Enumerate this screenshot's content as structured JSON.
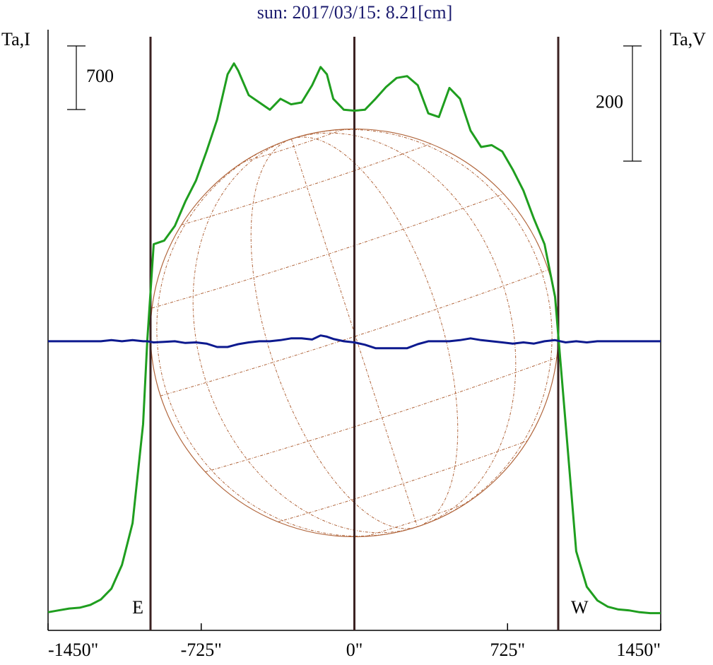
{
  "chart_data": {
    "type": "line",
    "title": "sun: 2017/03/15: 8.21[cm]",
    "y_label": "Ta,I",
    "y2_label": "Ta,V",
    "x": [
      -1450,
      -1400,
      -1350,
      -1300,
      -1250,
      -1200,
      -1150,
      -1100,
      -1050,
      -1000,
      -980,
      -950,
      -900,
      -850,
      -800,
      -750,
      -700,
      -650,
      -600,
      -570,
      -550,
      -500,
      -450,
      -400,
      -350,
      -300,
      -250,
      -200,
      -160,
      -130,
      -100,
      -50,
      0,
      50,
      100,
      150,
      200,
      250,
      300,
      350,
      400,
      450,
      500,
      550,
      600,
      650,
      700,
      750,
      800,
      850,
      900,
      950,
      1000,
      1050,
      1100,
      1150,
      1200,
      1250,
      1300,
      1350,
      1400,
      1450
    ],
    "xlim": [
      -1450,
      1450
    ],
    "xticks": [
      {
        "value": -1450,
        "label": "-1450\""
      },
      {
        "value": -725,
        "label": "-725\""
      },
      {
        "value": 0,
        "label": "0\""
      },
      {
        "value": 725,
        "label": "725\""
      },
      {
        "value": 1450,
        "label": "1450\""
      }
    ],
    "ylim": [
      0,
      6611
    ],
    "y2lim": [
      -502,
      541
    ],
    "series": [
      {
        "color": "#1f9e1f",
        "values": [
          200,
          220,
          240,
          250,
          280,
          340,
          460,
          720,
          1180,
          2270,
          3200,
          4250,
          4290,
          4450,
          4720,
          4950,
          5270,
          5620,
          6120,
          6240,
          6160,
          5890,
          5810,
          5730,
          5850,
          5790,
          5810,
          6000,
          6200,
          6120,
          5850,
          5730,
          5720,
          5730,
          5850,
          5980,
          6080,
          6100,
          6000,
          5690,
          5650,
          5970,
          5850,
          5500,
          5320,
          5340,
          5270,
          5070,
          4840,
          4530,
          4250,
          3670,
          2270,
          870,
          480,
          330,
          260,
          230,
          220,
          200,
          190,
          190
        ]
      },
      {
        "color": "#0d1a8f",
        "axis": "y2",
        "values": [
          0,
          0,
          0,
          0,
          0,
          0,
          2,
          0,
          2,
          0,
          0,
          -2,
          -1,
          0,
          -3,
          -2,
          -4,
          -10,
          -10,
          -7,
          -5,
          -2,
          0,
          0,
          2,
          5,
          5,
          3,
          10,
          8,
          4,
          0,
          -2,
          -6,
          -12,
          -12,
          -12,
          -12,
          -5,
          0,
          0,
          0,
          2,
          5,
          2,
          0,
          -2,
          -4,
          -2,
          -4,
          0,
          2,
          -2,
          0,
          -2,
          0,
          0,
          0,
          0,
          0,
          0,
          0
        ]
      }
    ],
    "vlines": [
      -965,
      0,
      965
    ],
    "limb_labels": [
      "E",
      "W"
    ],
    "scale_bars": [
      700,
      200
    ]
  }
}
